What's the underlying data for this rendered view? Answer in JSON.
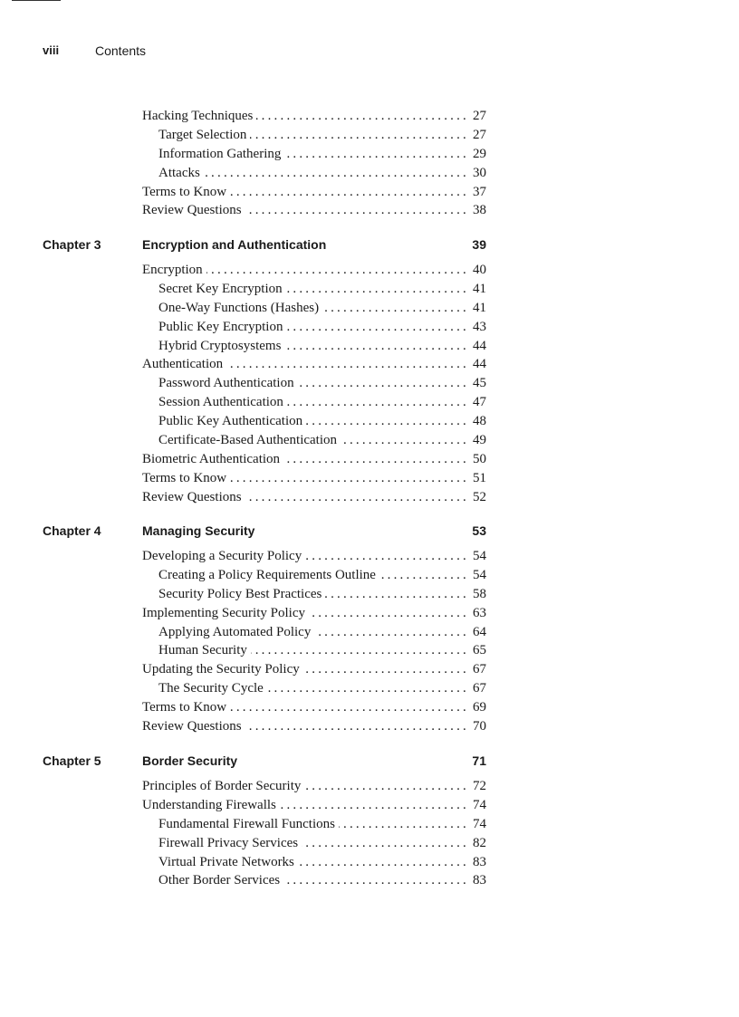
{
  "header": {
    "folio": "viii",
    "running_title": "Contents"
  },
  "groups": [
    {
      "chapter": null,
      "entries": [
        {
          "level": 1,
          "label": "Hacking Techniques",
          "page": "27"
        },
        {
          "level": 2,
          "label": "Target Selection",
          "page": "27"
        },
        {
          "level": 2,
          "label": "Information Gathering",
          "page": "29"
        },
        {
          "level": 2,
          "label": "Attacks",
          "page": "30"
        },
        {
          "level": 1,
          "label": "Terms to Know",
          "page": "37"
        },
        {
          "level": 1,
          "label": "Review Questions",
          "page": "38"
        }
      ]
    },
    {
      "chapter": {
        "number": "Chapter 3",
        "title": "Encryption and Authentication",
        "page": "39"
      },
      "entries": [
        {
          "level": 1,
          "label": "Encryption",
          "page": "40"
        },
        {
          "level": 2,
          "label": "Secret Key Encryption",
          "page": "41"
        },
        {
          "level": 2,
          "label": "One-Way Functions (Hashes)",
          "page": "41"
        },
        {
          "level": 2,
          "label": "Public Key Encryption",
          "page": "43"
        },
        {
          "level": 2,
          "label": "Hybrid Cryptosystems",
          "page": "44"
        },
        {
          "level": 1,
          "label": "Authentication",
          "page": "44"
        },
        {
          "level": 2,
          "label": "Password Authentication",
          "page": "45"
        },
        {
          "level": 2,
          "label": "Session Authentication",
          "page": "47"
        },
        {
          "level": 2,
          "label": "Public Key Authentication",
          "page": "48"
        },
        {
          "level": 2,
          "label": "Certificate-Based Authentication",
          "page": "49"
        },
        {
          "level": 1,
          "label": "Biometric Authentication",
          "page": "50"
        },
        {
          "level": 1,
          "label": "Terms to Know",
          "page": "51"
        },
        {
          "level": 1,
          "label": "Review Questions",
          "page": "52"
        }
      ]
    },
    {
      "chapter": {
        "number": "Chapter 4",
        "title": "Managing Security",
        "page": "53"
      },
      "entries": [
        {
          "level": 1,
          "label": "Developing a Security Policy",
          "page": "54"
        },
        {
          "level": 2,
          "label": "Creating a Policy Requirements Outline",
          "page": "54"
        },
        {
          "level": 2,
          "label": "Security Policy Best Practices",
          "page": "58"
        },
        {
          "level": 1,
          "label": "Implementing Security Policy",
          "page": "63"
        },
        {
          "level": 2,
          "label": "Applying Automated Policy",
          "page": "64"
        },
        {
          "level": 2,
          "label": "Human Security",
          "page": "65"
        },
        {
          "level": 1,
          "label": "Updating the Security Policy",
          "page": "67"
        },
        {
          "level": 2,
          "label": "The Security Cycle",
          "page": "67"
        },
        {
          "level": 1,
          "label": "Terms to Know",
          "page": "69"
        },
        {
          "level": 1,
          "label": "Review Questions",
          "page": "70"
        }
      ]
    },
    {
      "chapter": {
        "number": "Chapter 5",
        "title": "Border Security",
        "page": "71"
      },
      "entries": [
        {
          "level": 1,
          "label": "Principles of Border Security",
          "page": "72"
        },
        {
          "level": 1,
          "label": "Understanding Firewalls",
          "page": "74"
        },
        {
          "level": 2,
          "label": "Fundamental Firewall Functions",
          "page": "74"
        },
        {
          "level": 2,
          "label": "Firewall Privacy Services",
          "page": "82"
        },
        {
          "level": 2,
          "label": "Virtual Private Networks",
          "page": "83"
        },
        {
          "level": 2,
          "label": "Other Border Services",
          "page": "83"
        }
      ]
    }
  ]
}
